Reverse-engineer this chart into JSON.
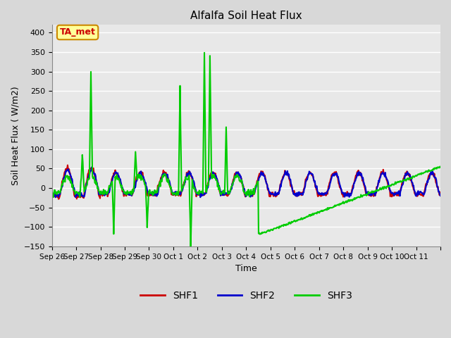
{
  "title": "Alfalfa Soil Heat Flux",
  "xlabel": "Time",
  "ylabel": "Soil Heat Flux ( W/m2)",
  "ylim": [
    -150,
    420
  ],
  "yticks": [
    -150,
    -100,
    -50,
    0,
    50,
    100,
    150,
    200,
    250,
    300,
    350,
    400
  ],
  "bg_color": "#d8d8d8",
  "plot_bg_color": "#e8e8e8",
  "grid_color": "#ffffff",
  "shf1_color": "#cc0000",
  "shf2_color": "#0000cc",
  "shf3_color": "#00cc00",
  "annotation_text": "TA_met",
  "annotation_color": "#cc0000",
  "annotation_bg": "#ffff99",
  "annotation_border": "#cc8800",
  "lw": 1.5,
  "n_days": 16,
  "n_per_day": 48,
  "xtick_positions": [
    0,
    1,
    2,
    3,
    4,
    5,
    6,
    7,
    8,
    9,
    10,
    11,
    12,
    13,
    14,
    15,
    16
  ],
  "xtick_labels": [
    "Sep 26",
    "Sep 27",
    "Sep 28",
    "Sep 29",
    "Sep 30",
    "Oct 1",
    "Oct 2",
    "Oct 3",
    "Oct 4",
    "Oct 5",
    "Oct 6",
    "Oct 7",
    "Oct 8",
    "Oct 9",
    "Oct 10",
    "Oct 11",
    ""
  ]
}
